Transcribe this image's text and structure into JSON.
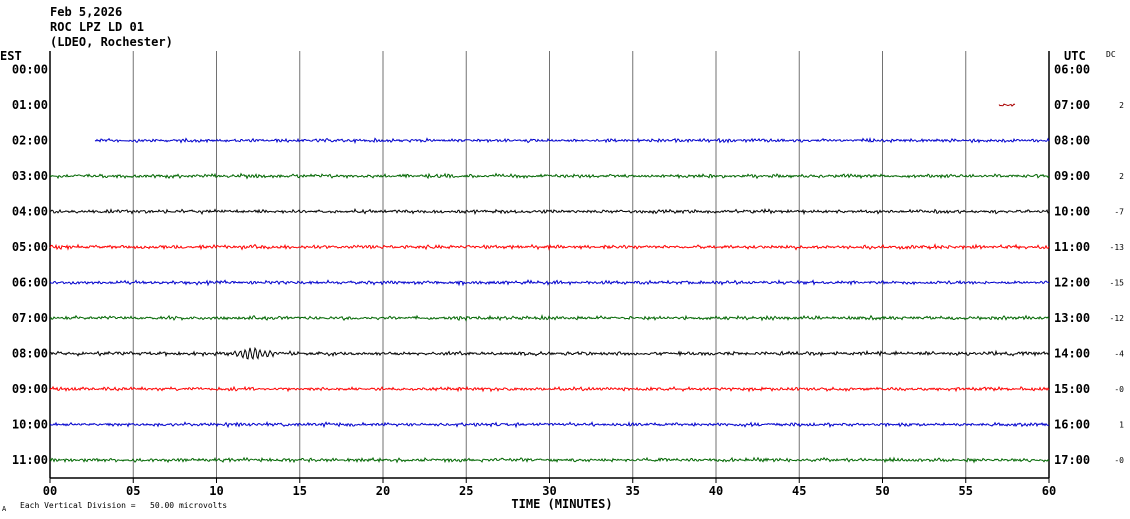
{
  "header": {
    "date": "Feb 5,2026",
    "station": "ROC LPZ LD 01",
    "network": "(LDEO, Rochester)"
  },
  "labels": {
    "left_tz": "EST",
    "right_tz": "UTC",
    "dc": "DC",
    "x_title": "TIME (MINUTES)",
    "footer": "Each Vertical Division =   50.00 microvolts",
    "footer_mark": "A"
  },
  "colors": {
    "black": "#000000",
    "red": "#ff0000",
    "blue": "#0000cc",
    "green": "#006600",
    "darkred": "#aa0000",
    "grid": "#808080"
  },
  "chart_data": {
    "type": "line",
    "x_ticks": [
      "00",
      "05",
      "10",
      "15",
      "20",
      "25",
      "30",
      "35",
      "40",
      "45",
      "50",
      "55",
      "60"
    ],
    "xlim": [
      0,
      60
    ],
    "grid": true,
    "rows": [
      {
        "est": "00:00",
        "utc": "06:00",
        "dc": "",
        "color": "black",
        "start": null,
        "end": null,
        "amp": 0
      },
      {
        "est": "01:00",
        "utc": "07:00",
        "dc": "2",
        "color": "darkred",
        "start": 57,
        "end": 58,
        "amp": 1.2
      },
      {
        "est": "02:00",
        "utc": "08:00",
        "dc": "",
        "color": "blue",
        "start": 2.7,
        "end": 60,
        "amp": 1.3
      },
      {
        "est": "03:00",
        "utc": "09:00",
        "dc": "2",
        "color": "green",
        "start": 0,
        "end": 60,
        "amp": 1.4
      },
      {
        "est": "04:00",
        "utc": "10:00",
        "dc": "-7",
        "color": "black",
        "start": 0,
        "end": 60,
        "amp": 1.4
      },
      {
        "est": "05:00",
        "utc": "11:00",
        "dc": "-13",
        "color": "red",
        "start": 0,
        "end": 60,
        "amp": 1.5
      },
      {
        "est": "06:00",
        "utc": "12:00",
        "dc": "-15",
        "color": "blue",
        "start": 0,
        "end": 60,
        "amp": 1.4
      },
      {
        "est": "07:00",
        "utc": "13:00",
        "dc": "-12",
        "color": "green",
        "start": 0,
        "end": 60,
        "amp": 1.4
      },
      {
        "est": "08:00",
        "utc": "14:00",
        "dc": "-4",
        "color": "black",
        "start": 0,
        "end": 60,
        "amp": 1.5,
        "event": {
          "start": 10.5,
          "end": 15,
          "peak": 12.3,
          "amp": 8
        }
      },
      {
        "est": "09:00",
        "utc": "15:00",
        "dc": "-0",
        "color": "red",
        "start": 0,
        "end": 60,
        "amp": 1.4
      },
      {
        "est": "10:00",
        "utc": "16:00",
        "dc": "1",
        "color": "blue",
        "start": 0,
        "end": 60,
        "amp": 1.4
      },
      {
        "est": "11:00",
        "utc": "17:00",
        "dc": "-0",
        "color": "green",
        "start": 0,
        "end": 60,
        "amp": 1.4
      }
    ]
  }
}
